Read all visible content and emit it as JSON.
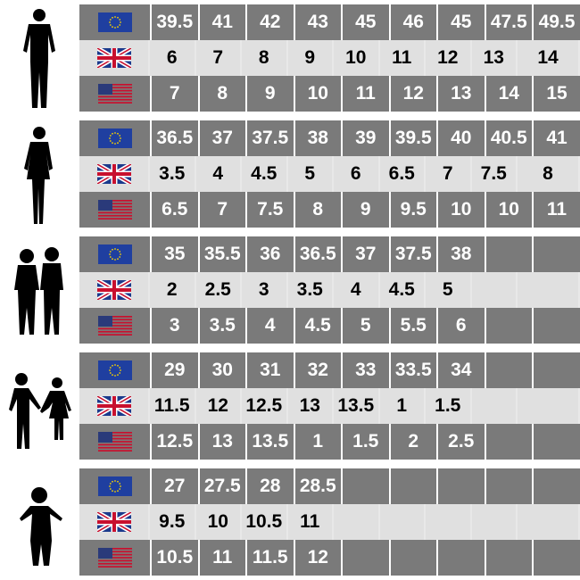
{
  "columns": 9,
  "colors": {
    "dark_row": "#7a7a7a",
    "light_row": "#e0e0e0",
    "dark_text": "#ffffff",
    "light_text": "#000000"
  },
  "row_flags": [
    "eu-flag-icon",
    "uk-flag-icon",
    "us-flag-icon"
  ],
  "groups": [
    {
      "silhouette": "man-silhouette-icon",
      "eu": [
        "39.5",
        "41",
        "42",
        "43",
        "45",
        "46",
        "45",
        "47.5",
        "49.5"
      ],
      "uk": [
        "6",
        "7",
        "8",
        "9",
        "10",
        "11",
        "12",
        "13",
        "14"
      ],
      "us": [
        "7",
        "8",
        "9",
        "10",
        "11",
        "12",
        "13",
        "14",
        "15"
      ]
    },
    {
      "silhouette": "woman-silhouette-icon",
      "eu": [
        "36.5",
        "37",
        "37.5",
        "38",
        "39",
        "39.5",
        "40",
        "40.5",
        "41"
      ],
      "uk": [
        "3.5",
        "4",
        "4.5",
        "5",
        "6",
        "6.5",
        "7",
        "7.5",
        "8"
      ],
      "us": [
        "6.5",
        "7",
        "7.5",
        "8",
        "9",
        "9.5",
        "10",
        "10",
        "11"
      ]
    },
    {
      "silhouette": "teens-silhouette-icon",
      "eu": [
        "35",
        "35.5",
        "36",
        "36.5",
        "37",
        "37.5",
        "38",
        "",
        ""
      ],
      "uk": [
        "2",
        "2.5",
        "3",
        "3.5",
        "4",
        "4.5",
        "5",
        "",
        ""
      ],
      "us": [
        "3",
        "3.5",
        "4",
        "4.5",
        "5",
        "5.5",
        "6",
        "",
        ""
      ]
    },
    {
      "silhouette": "children-silhouette-icon",
      "eu": [
        "29",
        "30",
        "31",
        "32",
        "33",
        "33.5",
        "34",
        "",
        ""
      ],
      "uk": [
        "11.5",
        "12",
        "12.5",
        "13",
        "13.5",
        "1",
        "1.5",
        "",
        ""
      ],
      "us": [
        "12.5",
        "13",
        "13.5",
        "1",
        "1.5",
        "2",
        "2.5",
        "",
        ""
      ]
    },
    {
      "silhouette": "toddler-silhouette-icon",
      "eu": [
        "27",
        "27.5",
        "28",
        "28.5",
        "",
        "",
        "",
        "",
        ""
      ],
      "uk": [
        "9.5",
        "10",
        "10.5",
        "11",
        "",
        "",
        "",
        "",
        ""
      ],
      "us": [
        "10.5",
        "11",
        "11.5",
        "12",
        "",
        "",
        "",
        "",
        ""
      ]
    }
  ]
}
